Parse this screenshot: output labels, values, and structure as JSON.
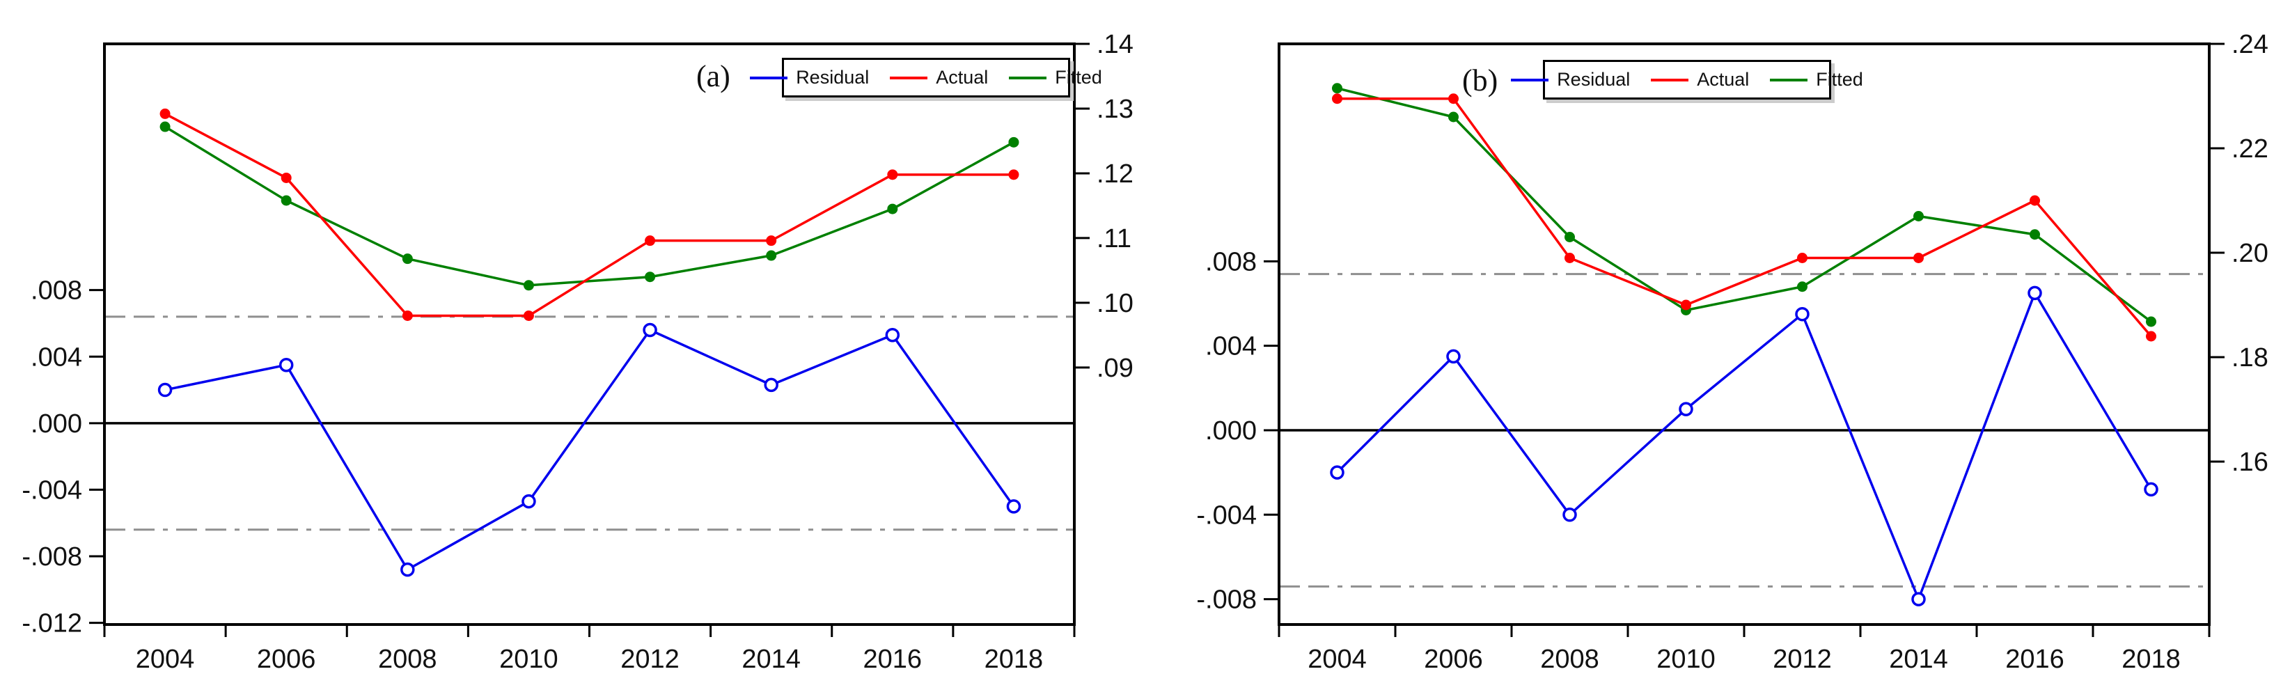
{
  "figure": {
    "background": "#ffffff"
  },
  "colors": {
    "residual": "#0000ee",
    "actual": "#fe0000",
    "fitted": "#008000",
    "se_band": "#8f8f8f",
    "axis": "#000000",
    "text": "#111111"
  },
  "legend_labels": [
    "Residual",
    "Actual",
    "Fitted"
  ],
  "chart_data": [
    {
      "type": "line",
      "panel_label": "(a)",
      "legend_position": "top-right-inside",
      "grid": "off",
      "x": [
        2004,
        2006,
        2008,
        2010,
        2012,
        2014,
        2016,
        2018
      ],
      "x_tick_labels": [
        "2004",
        "2006",
        "2008",
        "2010",
        "2012",
        "2014",
        "2016",
        "2018"
      ],
      "series": [
        {
          "name": "Residual",
          "axis": "left",
          "color_key": "residual",
          "marker": "open-circle",
          "values": [
            0.002,
            0.0035,
            -0.0088,
            -0.0047,
            0.0056,
            0.0023,
            0.0053,
            -0.005
          ]
        },
        {
          "name": "Actual",
          "axis": "right",
          "color_key": "actual",
          "marker": "filled-circle",
          "values": [
            0.1292,
            0.1193,
            0.098,
            0.098,
            0.1096,
            0.1096,
            0.1198,
            0.1198
          ]
        },
        {
          "name": "Fitted",
          "axis": "right",
          "color_key": "fitted",
          "marker": "filled-circle",
          "values": [
            0.1272,
            0.1158,
            0.1068,
            0.1027,
            0.104,
            0.1073,
            0.1145,
            0.1248
          ]
        }
      ],
      "left_axis": {
        "range_top": 0.0228,
        "range_bottom": -0.0121,
        "se_band": 0.0064,
        "ticks": [
          {
            "label": ".008",
            "value": 0.008
          },
          {
            "label": ".004",
            "value": 0.004
          },
          {
            "label": ".000",
            "value": 0.0
          },
          {
            "label": "-.004",
            "value": -0.004
          },
          {
            "label": "-.008",
            "value": -0.008
          },
          {
            "label": "-.012",
            "value": -0.012
          }
        ]
      },
      "right_axis": {
        "range_top": 0.14,
        "range_bottom": 0.0503,
        "ticks": [
          {
            "label": ".14",
            "value": 0.14
          },
          {
            "label": ".13",
            "value": 0.13
          },
          {
            "label": ".12",
            "value": 0.12
          },
          {
            "label": ".11",
            "value": 0.11
          },
          {
            "label": ".10",
            "value": 0.1
          },
          {
            "label": ".09",
            "value": 0.09
          }
        ]
      }
    },
    {
      "type": "line",
      "panel_label": "(b)",
      "legend_position": "top-right-inside",
      "grid": "off",
      "x": [
        2004,
        2006,
        2008,
        2010,
        2012,
        2014,
        2016,
        2018
      ],
      "x_tick_labels": [
        "2004",
        "2006",
        "2008",
        "2010",
        "2012",
        "2014",
        "2016",
        "2018"
      ],
      "series": [
        {
          "name": "Residual",
          "axis": "left",
          "color_key": "residual",
          "marker": "open-circle",
          "values": [
            -0.002,
            0.0035,
            -0.004,
            0.001,
            0.0055,
            -0.008,
            0.0065,
            -0.0028
          ]
        },
        {
          "name": "Actual",
          "axis": "right",
          "color_key": "actual",
          "marker": "filled-circle",
          "values": [
            0.2295,
            0.2295,
            0.199,
            0.19,
            0.199,
            0.199,
            0.21,
            0.184
          ]
        },
        {
          "name": "Fitted",
          "axis": "right",
          "color_key": "fitted",
          "marker": "filled-circle",
          "values": [
            0.2315,
            0.226,
            0.203,
            0.189,
            0.1935,
            0.207,
            0.2035,
            0.1868
          ]
        }
      ],
      "left_axis": {
        "range_top": 0.0183,
        "range_bottom": -0.0092,
        "se_band": 0.0074,
        "ticks": [
          {
            "label": ".008",
            "value": 0.008
          },
          {
            "label": ".004",
            "value": 0.004
          },
          {
            "label": ".000",
            "value": 0.0
          },
          {
            "label": "-.004",
            "value": -0.004
          },
          {
            "label": "-.008",
            "value": -0.008
          }
        ]
      },
      "right_axis": {
        "range_top": 0.24,
        "range_bottom": 0.1288,
        "ticks": [
          {
            "label": ".24",
            "value": 0.24
          },
          {
            "label": ".22",
            "value": 0.22
          },
          {
            "label": ".20",
            "value": 0.2
          },
          {
            "label": ".18",
            "value": 0.18
          },
          {
            "label": ".16",
            "value": 0.16
          }
        ]
      }
    }
  ]
}
